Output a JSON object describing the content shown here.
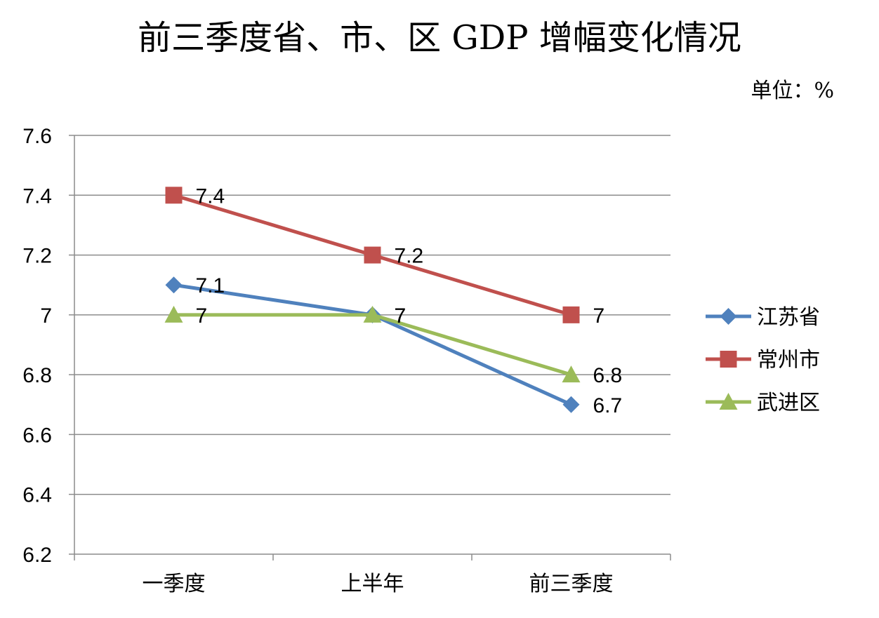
{
  "title": "前三季度省、市、区 GDP 增幅变化情况",
  "unit": "单位：%",
  "chart_data": {
    "type": "line",
    "title": "前三季度省、市、区 GDP 增幅变化情况",
    "xlabel": "",
    "ylabel": "",
    "categories": [
      "一季度",
      "上半年",
      "前三季度"
    ],
    "ylim": [
      6.2,
      7.6
    ],
    "yticks": [
      7.6,
      7.4,
      7.2,
      7,
      6.8,
      6.6,
      6.4,
      6.2
    ],
    "grid": true,
    "legend_position": "right",
    "series": [
      {
        "name": "江苏省",
        "values": [
          7.1,
          7,
          6.7
        ],
        "labels": [
          "7.1",
          "7",
          "6.7"
        ],
        "color": "#4F81BD",
        "marker": "diamond"
      },
      {
        "name": "常州市",
        "values": [
          7.4,
          7.2,
          7
        ],
        "labels": [
          "7.4",
          "7.2",
          "7"
        ],
        "color": "#C0504D",
        "marker": "square"
      },
      {
        "name": "武进区",
        "values": [
          7,
          7,
          6.8
        ],
        "labels": [
          "7",
          "7",
          "6.8"
        ],
        "color": "#9BBB59",
        "marker": "triangle"
      }
    ]
  }
}
